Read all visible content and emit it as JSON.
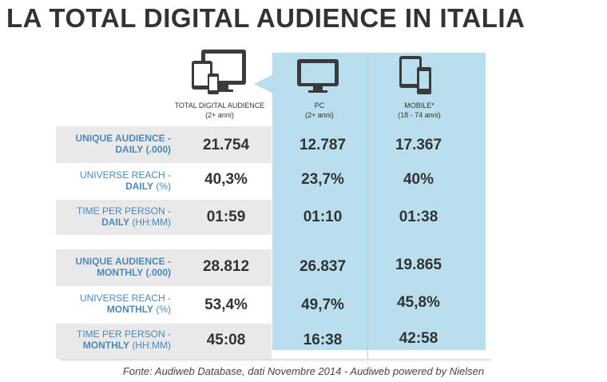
{
  "title": "LA TOTAL DIGITAL AUDIENCE IN ITALIA",
  "columns": [
    {
      "label": "TOTAL DIGITAL AUDIENCE",
      "sub": "(2+ anni)",
      "icon": "devices-icon"
    },
    {
      "label": "PC",
      "sub": "(2+ anni)",
      "icon": "monitor-icon"
    },
    {
      "label": "MOBILE*",
      "sub": "(18 - 74 anni)",
      "icon": "mobile-devices-icon"
    }
  ],
  "rows": [
    {
      "line1": "UNIQUE AUDIENCE -",
      "line2": "DAILY",
      "unit": "(.000)",
      "values": [
        "21.754",
        "12.787",
        "17.367"
      ]
    },
    {
      "line1": "UNIVERSE REACH -",
      "line2": "DAILY",
      "unit": "(%)",
      "values": [
        "40,3%",
        "23,7%",
        "40%"
      ]
    },
    {
      "line1": "TIME PER PERSON -",
      "line2": "DAILY",
      "unit": "(HH:MM)",
      "values": [
        "01:59",
        "01:10",
        "01:38"
      ]
    },
    {
      "line1": "UNIQUE AUDIENCE -",
      "line2": "MONTHLY",
      "unit": "(.000)",
      "values": [
        "28.812",
        "26.837",
        "19.865"
      ]
    },
    {
      "line1": "UNIVERSE REACH -",
      "line2": "MONTHLY",
      "unit": "(%)",
      "values": [
        "53,4%",
        "49,7%",
        "45,8%"
      ]
    },
    {
      "line1": "TIME PER PERSON -",
      "line2": "MONTHLY",
      "unit": "(HH:MM)",
      "values": [
        "45:08",
        "16:38",
        "42:58"
      ]
    }
  ],
  "source": "Fonte: Audiweb Database, dati Novembre 2014 - Audiweb powered by Nielsen",
  "colors": {
    "highlight": "#b9dfef",
    "label": "#4b89b9",
    "band": "#e9e9e9",
    "text": "#333333"
  },
  "chart_data": {
    "type": "table",
    "title": "LA TOTAL DIGITAL AUDIENCE IN ITALIA",
    "columns": [
      "TOTAL DIGITAL AUDIENCE (2+ anni)",
      "PC (2+ anni)",
      "MOBILE* (18 - 74 anni)"
    ],
    "rows": [
      {
        "label": "UNIQUE AUDIENCE - DAILY (.000)",
        "values": [
          "21.754",
          "12.787",
          "17.367"
        ]
      },
      {
        "label": "UNIVERSE REACH - DAILY (%)",
        "values": [
          "40,3%",
          "23,7%",
          "40%"
        ]
      },
      {
        "label": "TIME PER PERSON - DAILY (HH:MM)",
        "values": [
          "01:59",
          "01:10",
          "01:38"
        ]
      },
      {
        "label": "UNIQUE AUDIENCE - MONTHLY (.000)",
        "values": [
          "28.812",
          "26.837",
          "19.865"
        ]
      },
      {
        "label": "UNIVERSE REACH - MONTHLY (%)",
        "values": [
          "53,4%",
          "49,7%",
          "45,8%"
        ]
      },
      {
        "label": "TIME PER PERSON - MONTHLY (HH:MM)",
        "values": [
          "45:08",
          "16:38",
          "42:58"
        ]
      }
    ]
  }
}
